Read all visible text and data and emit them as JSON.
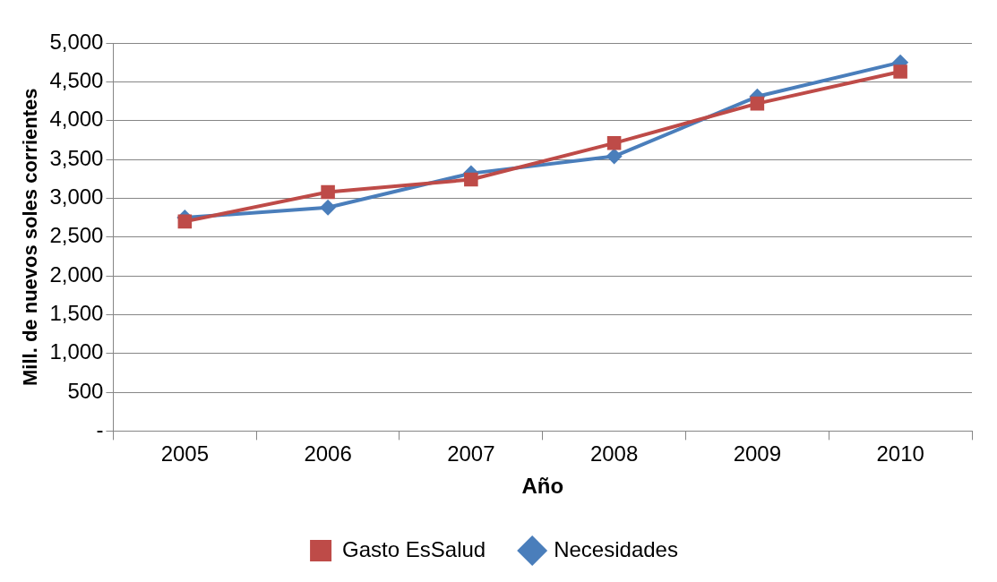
{
  "chart_data": {
    "type": "line",
    "xlabel": "Año",
    "ylabel": "Mill. de nuevos soles corrientes",
    "categories": [
      "2005",
      "2006",
      "2007",
      "2008",
      "2009",
      "2010"
    ],
    "series": [
      {
        "name": "Necesidades",
        "color": "#4a7ebb",
        "marker": "diamond",
        "values": [
          2750,
          2880,
          3320,
          3540,
          4310,
          4750
        ]
      },
      {
        "name": "Gasto EsSalud",
        "color": "#be4b48",
        "marker": "square",
        "values": [
          2700,
          3080,
          3240,
          3710,
          4220,
          4630
        ]
      }
    ],
    "ylim": [
      0,
      5000
    ],
    "yticks": [
      {
        "value": 0,
        "label": "-"
      },
      500,
      {
        "value": 1000,
        "label": "1,000"
      },
      {
        "value": 1500,
        "label": "1,500"
      },
      {
        "value": 2000,
        "label": "2,000"
      },
      {
        "value": 2500,
        "label": "2,500"
      },
      {
        "value": 3000,
        "label": "3,000"
      },
      {
        "value": 3500,
        "label": "3,500"
      },
      {
        "value": 4000,
        "label": "4,000"
      },
      {
        "value": 4500,
        "label": "4,500"
      },
      {
        "value": 5000,
        "label": "5,000"
      }
    ],
    "grid": "y",
    "legend": "bottom"
  }
}
